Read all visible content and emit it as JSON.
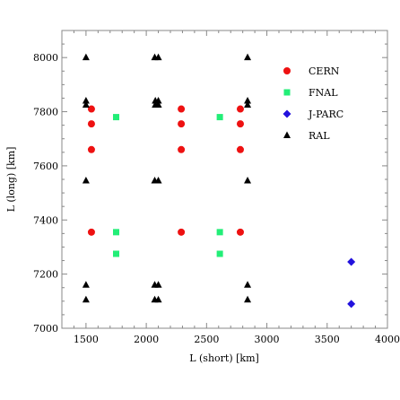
{
  "chart_data": {
    "type": "scatter",
    "xlabel": "L (short) [km]",
    "ylabel": "L (long) [km]",
    "xlim": [
      1300,
      4000
    ],
    "ylim": [
      7000,
      8100
    ],
    "xticks": [
      1500,
      2000,
      2500,
      3000,
      3500,
      4000
    ],
    "yticks": [
      7000,
      7200,
      7400,
      7600,
      7800,
      8000
    ],
    "grid": false,
    "legend_position": "top-right",
    "series": [
      {
        "name": "CERN",
        "marker": "circle",
        "color": "#ee1111",
        "points": [
          [
            1545,
            7810
          ],
          [
            1545,
            7755
          ],
          [
            1545,
            7660
          ],
          [
            1545,
            7355
          ],
          [
            2290,
            7810
          ],
          [
            2290,
            7755
          ],
          [
            2290,
            7660
          ],
          [
            2290,
            7355
          ],
          [
            2780,
            7810
          ],
          [
            2780,
            7755
          ],
          [
            2780,
            7660
          ],
          [
            2780,
            7355
          ]
        ]
      },
      {
        "name": "FNAL",
        "marker": "square",
        "color": "#22ee77",
        "points": [
          [
            1750,
            7780
          ],
          [
            1750,
            7355
          ],
          [
            1750,
            7275
          ],
          [
            2610,
            7780
          ],
          [
            2610,
            7355
          ],
          [
            2610,
            7275
          ]
        ]
      },
      {
        "name": "J-PARC",
        "marker": "diamond",
        "color": "#2211dd",
        "points": [
          [
            3700,
            7245
          ],
          [
            3700,
            7090
          ]
        ]
      },
      {
        "name": "RAL",
        "marker": "triangle",
        "color": "#000000",
        "points": [
          [
            1500,
            8000
          ],
          [
            1500,
            7840
          ],
          [
            1500,
            7825
          ],
          [
            1500,
            7545
          ],
          [
            1500,
            7160
          ],
          [
            1500,
            7105
          ],
          [
            2070,
            8000
          ],
          [
            2100,
            8000
          ],
          [
            2075,
            7840
          ],
          [
            2100,
            7840
          ],
          [
            2075,
            7825
          ],
          [
            2100,
            7825
          ],
          [
            2070,
            7545
          ],
          [
            2100,
            7545
          ],
          [
            2070,
            7160
          ],
          [
            2100,
            7160
          ],
          [
            2070,
            7105
          ],
          [
            2100,
            7105
          ],
          [
            2840,
            8000
          ],
          [
            2840,
            7840
          ],
          [
            2840,
            7825
          ],
          [
            2840,
            7545
          ],
          [
            2840,
            7160
          ],
          [
            2840,
            7105
          ]
        ]
      }
    ]
  }
}
